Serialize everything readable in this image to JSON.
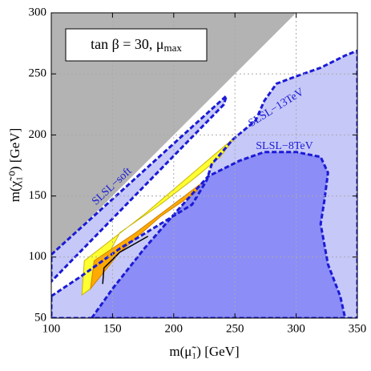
{
  "chart_data": {
    "type": "region",
    "title": "tan β = 30, μ",
    "title_subscript": "max",
    "x_label": "m(μ̃₁) [GeV]",
    "y_label": "m(χ̃₁⁰) [GeV]",
    "xlim": [
      100,
      350
    ],
    "ylim": [
      50,
      300
    ],
    "xticks": [
      100,
      150,
      200,
      250,
      300,
      350
    ],
    "yticks": [
      50,
      100,
      150,
      200,
      250,
      300
    ],
    "grid": true,
    "series": [
      {
        "color": "#b3b3b3",
        "x": [
          100,
          300,
          100
        ],
        "y": [
          100,
          300,
          300
        ]
      },
      {
        "name": "SLSL−13TeV",
        "color": "#c6c8f8",
        "edge": "#1a1ad6",
        "dashed": true,
        "x": [
          100,
          124,
          156,
          189,
          215,
          227,
          231,
          248,
          267,
          274,
          284,
          300,
          320,
          340,
          350,
          350,
          100
        ],
        "y": [
          68,
          84,
          107,
          127,
          143,
          163,
          176,
          196,
          212,
          228,
          242,
          248,
          255,
          265,
          269,
          50,
          50
        ]
      },
      {
        "name": "SLSL−8TeV",
        "color": "#8c8df6",
        "edge": "#1a1ad6",
        "dashed": true,
        "x": [
          133,
          150,
          176,
          202,
          228,
          254,
          274,
          300,
          320,
          326,
          323,
          320,
          326,
          336,
          340
        ],
        "y": [
          50,
          74,
          107,
          137,
          166,
          179,
          186,
          186,
          182,
          169,
          146,
          127,
          94,
          68,
          50
        ]
      },
      {
        "name": "SLSL−soft",
        "color": "#c6c8f8",
        "edge": "#1a1ad6",
        "dashed": true,
        "x": [
          100,
          243,
          241,
          100
        ],
        "y": [
          102,
          232,
          225,
          80
        ]
      },
      {
        "color": "#ffff33",
        "edge": "#c8b400",
        "x": [
          125,
          127,
          176,
          251,
          238,
          215,
          189,
          156,
          132
        ],
        "y": [
          69,
          97,
          135,
          199,
          182,
          163,
          143,
          120,
          74
        ]
      },
      {
        "color": "#ffaa00",
        "edge": "#d08000",
        "x": [
          132,
          135,
          169,
          222,
          218,
          189,
          156,
          140
        ],
        "y": [
          74,
          97,
          120,
          160,
          153,
          133,
          104,
          84
        ]
      },
      {
        "color": "#000000",
        "line": true,
        "x": [
          142,
          143,
          156,
          179
        ],
        "y": [
          78,
          91,
          104,
          117
        ]
      }
    ]
  }
}
